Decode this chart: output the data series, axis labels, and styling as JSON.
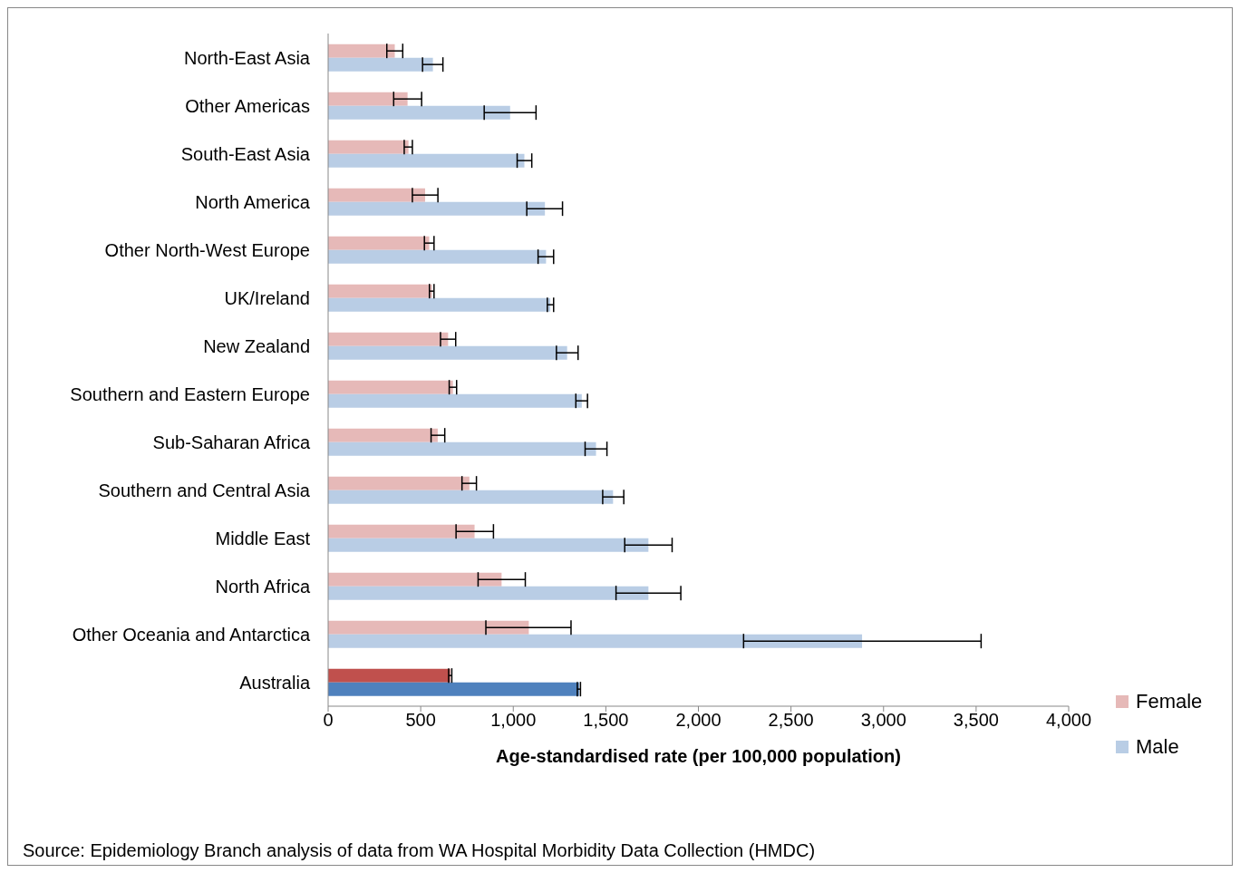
{
  "chart_data": {
    "type": "bar",
    "orientation": "horizontal",
    "xlabel": "Age-standardised rate (per 100,000 population)",
    "annotations": [
      "Source: Epidemiology Branch analysis of data from WA Hospital Morbidity Data Collection (HMDC)"
    ],
    "categories": [
      "North-East Asia",
      "Other Americas",
      "South-East Asia",
      "North America",
      "Other North-West Europe",
      "UK/Ireland",
      "New Zealand",
      "Southern and Eastern Europe",
      "Sub-Saharan Africa",
      "Southern and Central Asia",
      "Middle East",
      "North Africa",
      "Other Oceania and Antarctica",
      "Australia"
    ],
    "series": [
      {
        "name": "Female",
        "color": "#e6b9b8",
        "colors": [
          "#e6b9b8",
          "#e6b9b8",
          "#e6b9b8",
          "#e6b9b8",
          "#e6b9b8",
          "#e6b9b8",
          "#e6b9b8",
          "#e6b9b8",
          "#e6b9b8",
          "#e6b9b8",
          "#e6b9b8",
          "#e6b9b8",
          "#e6b9b8",
          "#c0504d"
        ],
        "values": [
          360,
          429,
          434,
          524,
          546,
          561,
          648,
          674,
          592,
          763,
          791,
          937,
          1084,
          659
        ],
        "errors": [
          [
            317,
            403
          ],
          [
            354,
            505
          ],
          [
            411,
            455
          ],
          [
            455,
            593
          ],
          [
            520,
            572
          ],
          [
            547,
            572
          ],
          [
            607,
            689
          ],
          [
            654,
            694
          ],
          [
            556,
            630
          ],
          [
            723,
            801
          ],
          [
            691,
            893
          ],
          [
            810,
            1065
          ],
          [
            852,
            1312
          ],
          [
            651,
            668
          ]
        ]
      },
      {
        "name": "Male",
        "color": "#b9cde5",
        "colors": [
          "#b9cde5",
          "#b9cde5",
          "#b9cde5",
          "#b9cde5",
          "#b9cde5",
          "#b9cde5",
          "#b9cde5",
          "#b9cde5",
          "#b9cde5",
          "#b9cde5",
          "#b9cde5",
          "#b9cde5",
          "#b9cde5",
          "#4f81bd"
        ],
        "values": [
          566,
          983,
          1060,
          1171,
          1177,
          1200,
          1291,
          1370,
          1447,
          1539,
          1730,
          1730,
          2884,
          1355
        ],
        "errors": [
          [
            510,
            620
          ],
          [
            843,
            1123
          ],
          [
            1021,
            1100
          ],
          [
            1073,
            1266
          ],
          [
            1134,
            1218
          ],
          [
            1184,
            1218
          ],
          [
            1233,
            1350
          ],
          [
            1338,
            1401
          ],
          [
            1388,
            1506
          ],
          [
            1483,
            1597
          ],
          [
            1602,
            1858
          ],
          [
            1555,
            1905
          ],
          [
            2244,
            3527
          ],
          [
            1346,
            1363
          ]
        ]
      }
    ],
    "xlim": [
      0,
      4000
    ],
    "xticks": [
      {
        "value": 0,
        "label": "0"
      },
      {
        "value": 500,
        "label": "500"
      },
      {
        "value": 1000,
        "label": "1,000"
      },
      {
        "value": 1500,
        "label": "1,500"
      },
      {
        "value": 2000,
        "label": "2,000"
      },
      {
        "value": 2500,
        "label": "2,500"
      },
      {
        "value": 3000,
        "label": "3,000"
      },
      {
        "value": 3500,
        "label": "3,500"
      },
      {
        "value": 4000,
        "label": "4,000"
      }
    ],
    "grid": false,
    "legend": "right"
  }
}
